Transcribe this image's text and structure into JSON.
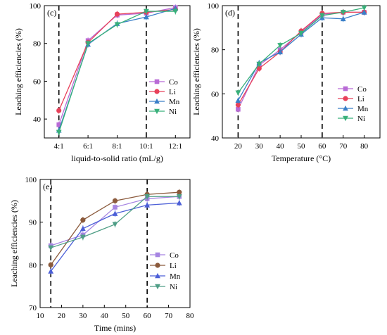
{
  "chart_data": [
    {
      "type": "line",
      "panel_label": "(c)",
      "xlabel": "liquid-to-solid ratio (mL/g)",
      "ylabel": "Leaching efficiencies (%)",
      "x_categories": [
        "4:1",
        "6:1",
        "8:1",
        "10:1",
        "12:1"
      ],
      "ylim": [
        30,
        100
      ],
      "yticks": [
        40,
        60,
        80,
        100
      ],
      "vlines_at": [
        "4:1",
        "10:1"
      ],
      "legend_position": "center-right",
      "series": [
        {
          "name": "Co",
          "color": "#b96bd6",
          "marker": "square",
          "values": [
            37,
            81.5,
            95,
            96,
            99
          ]
        },
        {
          "name": "Li",
          "color": "#e8415a",
          "marker": "circle",
          "values": [
            44.5,
            80.5,
            95.5,
            96.5,
            98
          ]
        },
        {
          "name": "Mn",
          "color": "#3a7fc8",
          "marker": "triangle-up",
          "values": [
            34,
            79.5,
            90.5,
            94,
            98.5
          ]
        },
        {
          "name": "Ni",
          "color": "#38b07a",
          "marker": "triangle-down",
          "values": [
            33,
            80,
            90,
            97,
            97
          ]
        }
      ]
    },
    {
      "type": "line",
      "panel_label": "(d)",
      "xlabel": "Temperature (°C)",
      "ylabel": "Leaching efficiencies (%)",
      "x_categories": [
        "20",
        "30",
        "40",
        "50",
        "60",
        "70",
        "80"
      ],
      "ylim": [
        40,
        100
      ],
      "yticks": [
        40,
        60,
        80,
        100
      ],
      "vlines_at": [
        "20",
        "60"
      ],
      "legend_position": "bottom-right",
      "series": [
        {
          "name": "Co",
          "color": "#b96bd6",
          "marker": "square",
          "values": [
            53,
            73,
            80,
            88,
            96,
            97,
            97
          ]
        },
        {
          "name": "Li",
          "color": "#e8415a",
          "marker": "circle",
          "values": [
            55,
            71.5,
            79,
            88.5,
            96.5,
            97,
            97
          ]
        },
        {
          "name": "Mn",
          "color": "#3a7fc8",
          "marker": "triangle-up",
          "values": [
            57,
            74,
            79,
            87,
            94.5,
            94,
            97
          ]
        },
        {
          "name": "Ni",
          "color": "#38b07a",
          "marker": "triangle-down",
          "values": [
            60.5,
            73.5,
            82,
            87.5,
            95.5,
            97,
            99
          ]
        }
      ]
    },
    {
      "type": "line",
      "panel_label": "(e)",
      "xlabel": "Time (mins)",
      "ylabel": "Leaching efficiencies (%)",
      "x_ticks": [
        "10",
        "20",
        "30",
        "40",
        "50",
        "60",
        "70",
        "80"
      ],
      "xlim": [
        10,
        80
      ],
      "ylim": [
        70,
        100
      ],
      "yticks": [
        70,
        80,
        90,
        100
      ],
      "vlines_at": [
        15,
        60
      ],
      "legend_position": "bottom-right",
      "x": [
        15,
        30,
        45,
        60,
        75
      ],
      "series": [
        {
          "name": "Co",
          "color": "#a685e2",
          "marker": "square",
          "values": [
            84.5,
            87,
            93.5,
            95.5,
            96
          ]
        },
        {
          "name": "Li",
          "color": "#8b5a3c",
          "marker": "circle",
          "values": [
            80,
            90.5,
            95,
            96.5,
            97
          ]
        },
        {
          "name": "Mn",
          "color": "#4c5fd7",
          "marker": "triangle-up",
          "values": [
            78.5,
            88.5,
            92,
            94,
            94.5
          ]
        },
        {
          "name": "Ni",
          "color": "#4f9e86",
          "marker": "triangle-down",
          "values": [
            84,
            86.5,
            89.5,
            96,
            96
          ]
        }
      ]
    }
  ]
}
